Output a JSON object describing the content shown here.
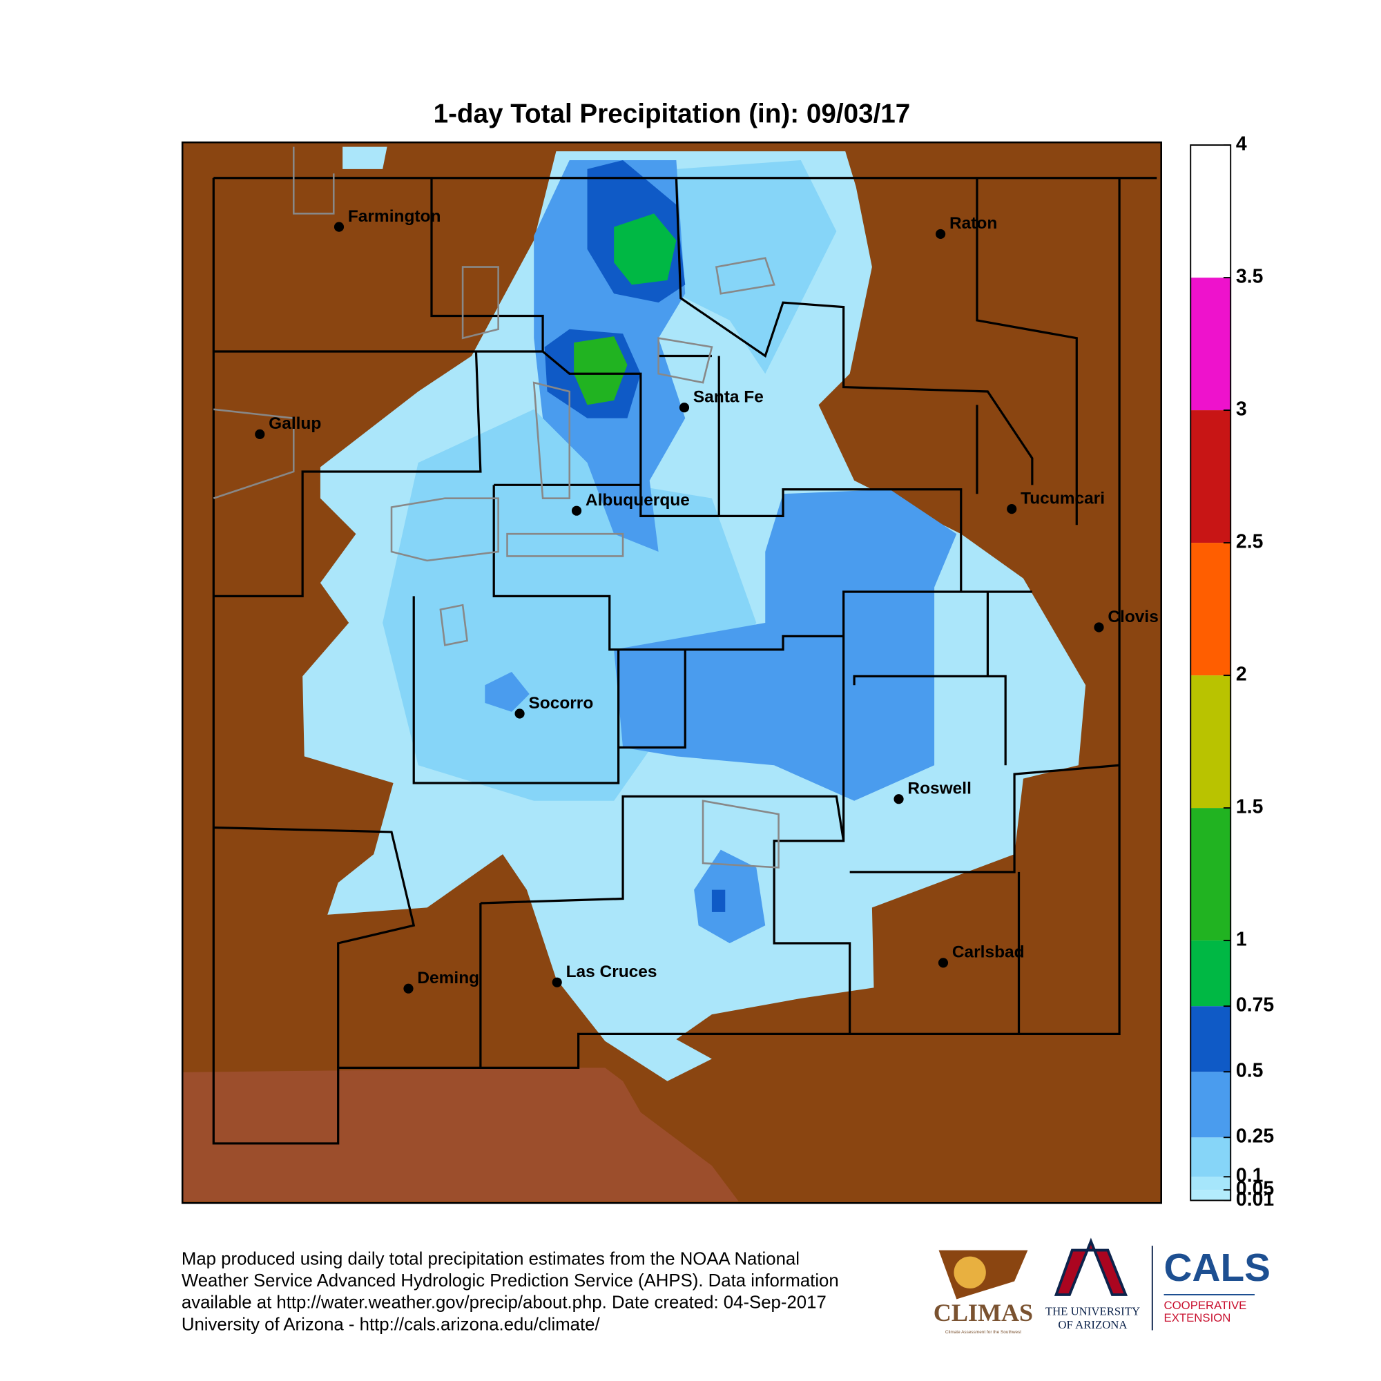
{
  "title": "1-day Total Precipitation (in): 09/03/17",
  "cities": [
    "Farmington",
    "Raton",
    "Gallup",
    "Santa Fe",
    "Tucumcari",
    "Albuquerque",
    "Clovis",
    "Socorro",
    "Roswell",
    "Carlsbad",
    "Deming",
    "Las Cruces"
  ],
  "colorbar": {
    "ticks": [
      0.01,
      0.05,
      0.1,
      0.25,
      0.5,
      0.75,
      1,
      1.5,
      2,
      2.5,
      3,
      3.5,
      4
    ],
    "colors": [
      "#b3ecfc",
      "#a6e6fb",
      "#86d5f8",
      "#4a9cee",
      "#0f5ac6",
      "#00b844",
      "#21b321",
      "#b9c300",
      "#ff5e00",
      "#c81515",
      "#ee12cc",
      "#ffffff"
    ]
  },
  "footer": [
    "Map produced using daily total precipitation estimates from the NOAA National",
    "Weather Service Advanced Hydrologic Prediction Service (AHPS). Data information",
    "available at http://water.weather.gov/precip/about.php. Date created: 04-Sep-2017",
    "University of Arizona - http://cals.arizona.edu/climate/"
  ],
  "logos": {
    "climas": "CLIMAS",
    "climas_sub": "Climate Assessment for the Southwest",
    "ua_line1": "THE UNIVERSITY",
    "ua_line2": "OF ARIZONA",
    "cals": "CALS",
    "cals_line1": "COOPERATIVE",
    "cals_line2": "EXTENSION"
  }
}
